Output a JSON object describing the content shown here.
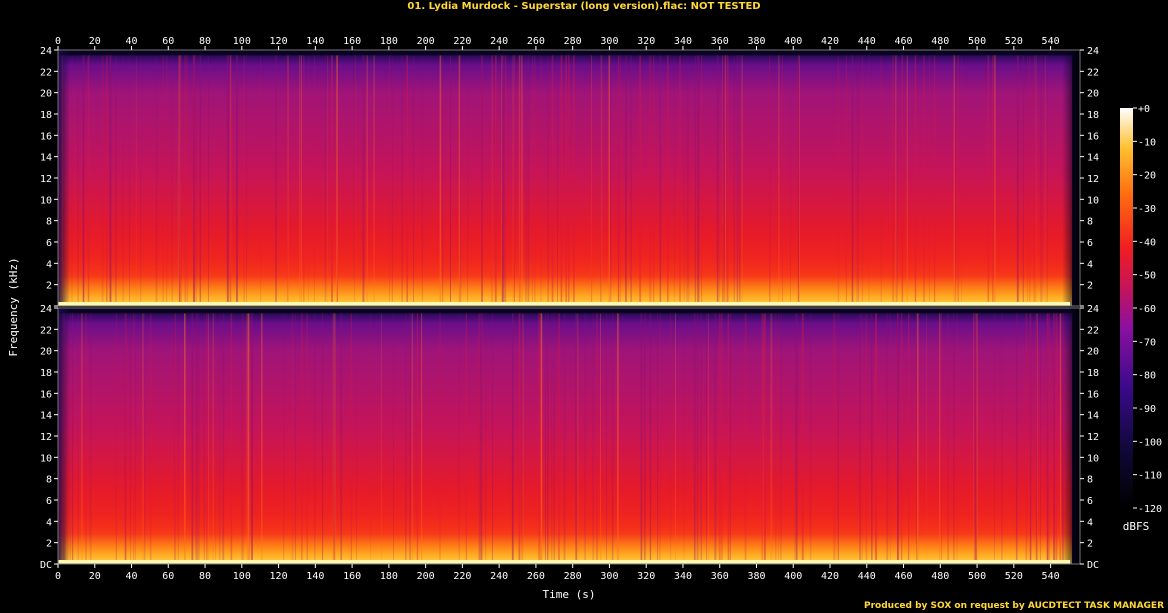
{
  "title": "01. Lydia Murdock - Superstar (long version).flac: NOT TESTED",
  "footer": "Produced by SOX on request by AUCDTECT TASK MANAGER",
  "colors": {
    "background": "#000000",
    "title": "#ffd83a",
    "text": "#ffffff"
  },
  "chart_data": {
    "type": "heatmap",
    "title": "01. Lydia Murdock - Superstar (long version).flac: NOT TESTED",
    "xlabel": "Time (s)",
    "ylabel": "Frequency (kHz)",
    "colorbar_label": "dBFS",
    "xlim": [
      0,
      556
    ],
    "ylim": [
      0,
      24
    ],
    "x_ticks": [
      0,
      20,
      40,
      60,
      80,
      100,
      120,
      140,
      160,
      180,
      200,
      220,
      240,
      260,
      280,
      300,
      320,
      340,
      360,
      380,
      400,
      420,
      440,
      460,
      480,
      500,
      520,
      540
    ],
    "y_ticks": [
      "DC",
      "2",
      "4",
      "6",
      "8",
      "10",
      "12",
      "14",
      "16",
      "18",
      "20",
      "22",
      "24"
    ],
    "colorbar_ticks": [
      "+0",
      "-10",
      "-20",
      "-30",
      "-40",
      "-50",
      "-60",
      "-70",
      "-80",
      "-90",
      "-100",
      "-110",
      "-120"
    ],
    "colorbar_range": [
      -120,
      0
    ],
    "channels": [
      {
        "channel": 1,
        "frequency_cutoff_khz": 23.5
      },
      {
        "channel": 2,
        "frequency_cutoff_khz": 23.5
      }
    ]
  }
}
